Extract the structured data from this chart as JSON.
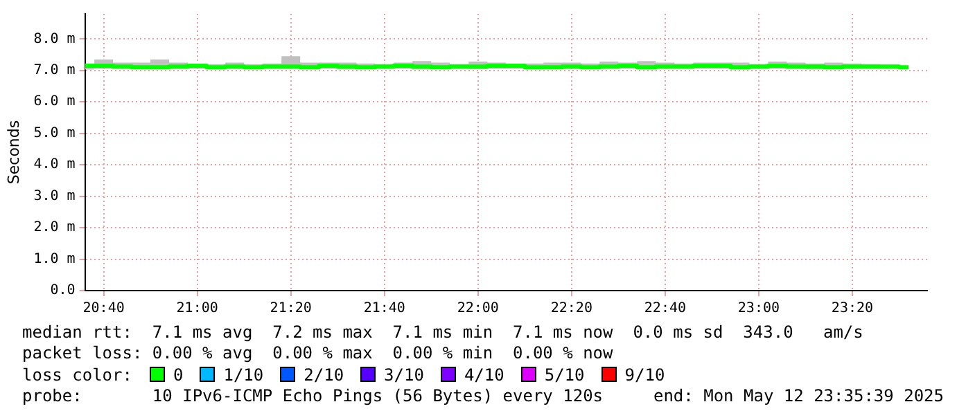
{
  "chart_data": {
    "type": "step",
    "ylabel": "Seconds",
    "x": [
      20.6,
      20.6667,
      20.7333,
      20.8,
      20.8667,
      20.9333,
      21.0,
      21.0667,
      21.1333,
      21.2,
      21.2667,
      21.3333,
      21.4,
      21.4667,
      21.5333,
      21.6,
      21.6667,
      21.7333,
      21.8,
      21.8667,
      21.9333,
      22.0,
      22.0667,
      22.1333,
      22.2,
      22.2667,
      22.3333,
      22.4,
      22.4667,
      22.5333,
      22.6,
      22.6667,
      22.7333,
      22.8,
      22.8667,
      22.9333,
      23.0,
      23.0667,
      23.1333,
      23.2,
      23.2667,
      23.3333,
      23.4,
      23.4667,
      23.5333
    ],
    "series": [
      {
        "color": "#00ff00",
        "lower": [
          7.03,
          7.05,
          7.05,
          7.04,
          7.05,
          7.05,
          7.05,
          7.03,
          7.05,
          7.05,
          7.05,
          7.05,
          7.04,
          7.05,
          7.03,
          7.05,
          7.05,
          7.05,
          7.03,
          7.05,
          7.05,
          7.04,
          7.05,
          7.05,
          7.03,
          7.05,
          7.05,
          7.05,
          7.05,
          7.05,
          7.03,
          7.05,
          7.05,
          7.05,
          7.05,
          7.03,
          7.05,
          7.05,
          7.05,
          7.03,
          7.05,
          7.05,
          7.05,
          7.05,
          7.05
        ],
        "values": [
          7.15,
          7.15,
          7.12,
          7.1,
          7.1,
          7.12,
          7.15,
          7.1,
          7.12,
          7.1,
          7.12,
          7.12,
          7.1,
          7.15,
          7.12,
          7.1,
          7.12,
          7.15,
          7.12,
          7.1,
          7.12,
          7.12,
          7.15,
          7.15,
          7.1,
          7.1,
          7.12,
          7.1,
          7.12,
          7.15,
          7.1,
          7.12,
          7.12,
          7.15,
          7.15,
          7.1,
          7.12,
          7.15,
          7.12,
          7.12,
          7.1,
          7.12,
          7.12,
          7.12,
          7.1
        ],
        "upper": [
          7.22,
          7.35,
          7.25,
          7.25,
          7.35,
          7.25,
          7.2,
          7.2,
          7.25,
          7.2,
          7.22,
          7.45,
          7.25,
          7.25,
          7.25,
          7.22,
          7.2,
          7.25,
          7.3,
          7.25,
          7.2,
          7.28,
          7.25,
          7.2,
          7.22,
          7.25,
          7.25,
          7.22,
          7.28,
          7.25,
          7.3,
          7.25,
          7.22,
          7.25,
          7.25,
          7.25,
          7.2,
          7.28,
          7.25,
          7.22,
          7.25,
          7.22,
          7.2,
          7.18,
          7.15
        ]
      }
    ],
    "xlim": [
      20.6,
      23.6
    ],
    "xticks": [
      {
        "value": 20.6667,
        "label": "20:40"
      },
      {
        "value": 21.0,
        "label": "21:00"
      },
      {
        "value": 21.3333,
        "label": "21:20"
      },
      {
        "value": 21.6667,
        "label": "21:40"
      },
      {
        "value": 22.0,
        "label": "22:00"
      },
      {
        "value": 22.3333,
        "label": "22:20"
      },
      {
        "value": 22.6667,
        "label": "22:40"
      },
      {
        "value": 23.0,
        "label": "23:00"
      },
      {
        "value": 23.3333,
        "label": "23:20"
      }
    ],
    "ylim": [
      0,
      8.8
    ],
    "yticks": [
      {
        "value": 0,
        "label": "0.0"
      },
      {
        "value": 1,
        "label": "1.0 m"
      },
      {
        "value": 2,
        "label": "2.0 m"
      },
      {
        "value": 3,
        "label": "3.0 m"
      },
      {
        "value": 4,
        "label": "4.0 m"
      },
      {
        "value": 5,
        "label": "5.0 m"
      },
      {
        "value": 6,
        "label": "6.0 m"
      },
      {
        "value": 7,
        "label": "7.0 m"
      },
      {
        "value": 8,
        "label": "8.0 m"
      }
    ],
    "grid": true,
    "legend": false,
    "annotations": [
      "median rtt:  7.1 ms avg  7.2 ms max  7.1 ms min  7.1 ms now  0.0 ms sd  343.0   am/s",
      "packet loss: 0.00 % avg  0.00 % max  0.00 % min  0.00 % now",
      "loss color:",
      "0",
      "1/10",
      "2/10",
      "3/10",
      "4/10",
      "5/10",
      "9/10",
      "probe:       10 IPv6-ICMP Echo Pings (56 Bytes) every 120s",
      "end: Mon May 12 23:35:39 2025"
    ]
  }
}
